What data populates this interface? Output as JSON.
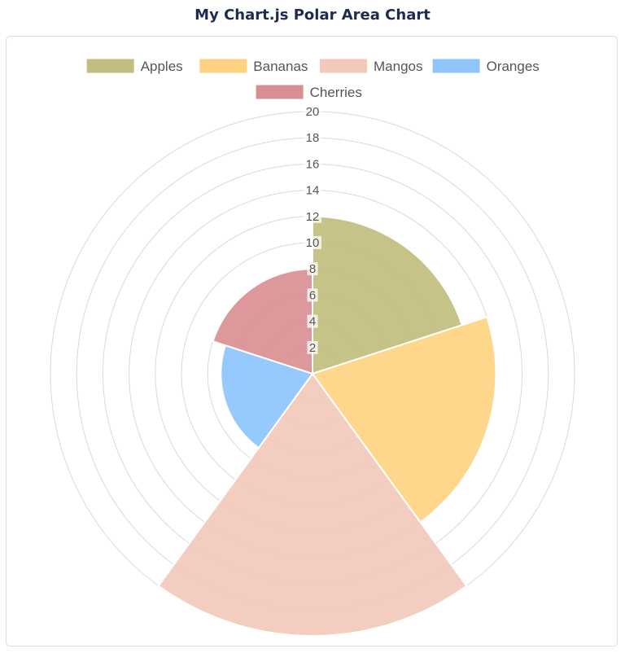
{
  "page": {
    "title": "My Chart.js Polar Area Chart"
  },
  "chart_data": {
    "type": "polarArea",
    "labels": [
      "Apples",
      "Bananas",
      "Mangos",
      "Oranges",
      "Cherries"
    ],
    "values": [
      12,
      14,
      20,
      7,
      8
    ],
    "colors": [
      "#c1be7f",
      "#fed282",
      "#f2c9bb",
      "#8dc5fc",
      "#d98f91"
    ],
    "r_axis": {
      "min": 0,
      "max": 20,
      "step": 2,
      "ticks": [
        "2",
        "4",
        "6",
        "8",
        "10",
        "12",
        "14",
        "16",
        "18",
        "20"
      ]
    },
    "legend_position": "top",
    "grid": true
  }
}
